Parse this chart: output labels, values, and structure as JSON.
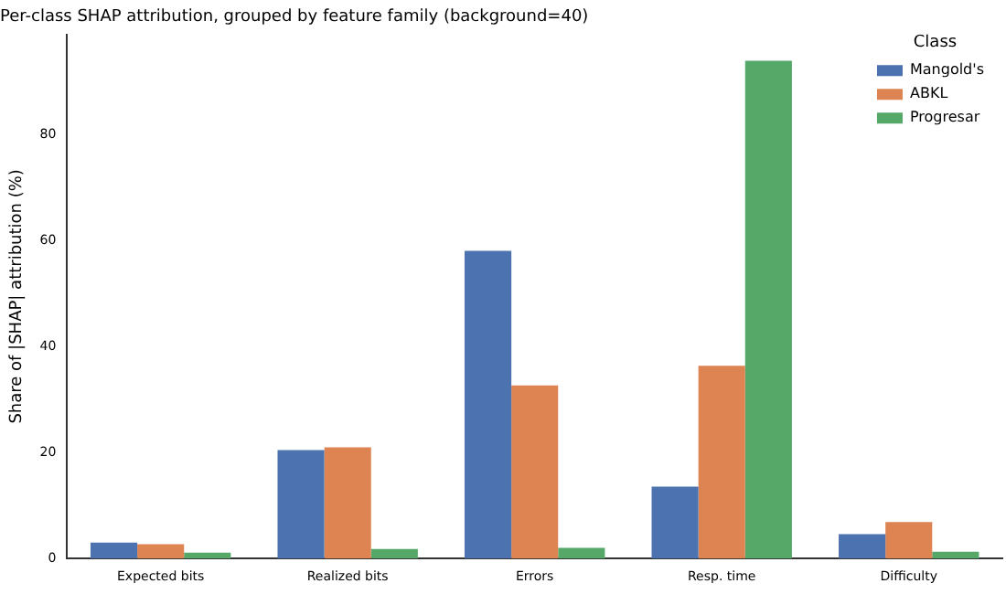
{
  "chart_data": {
    "type": "bar",
    "title": "Per-class SHAP attribution, grouped by feature family (background=40)",
    "ylabel": "Share of |SHAP| attribution (%)",
    "legend_title": "Class",
    "categories": [
      "Expected bits",
      "Realized bits",
      "Errors",
      "Resp. time",
      "Difficulty"
    ],
    "series": [
      {
        "name": "Mangold's",
        "color": "#4c72b0",
        "values": [
          3.0,
          20.5,
          58.1,
          13.6,
          4.6
        ]
      },
      {
        "name": "ABKL",
        "color": "#dd8452",
        "values": [
          2.7,
          21.0,
          32.7,
          36.4,
          6.9
        ]
      },
      {
        "name": "Progresar",
        "color": "#55a868",
        "values": [
          1.1,
          1.8,
          2.0,
          94.0,
          1.3
        ]
      }
    ],
    "ylim": [
      0,
      99
    ],
    "yticks": [
      0,
      20,
      40,
      60,
      80
    ],
    "grid": false,
    "legend": "top right"
  }
}
